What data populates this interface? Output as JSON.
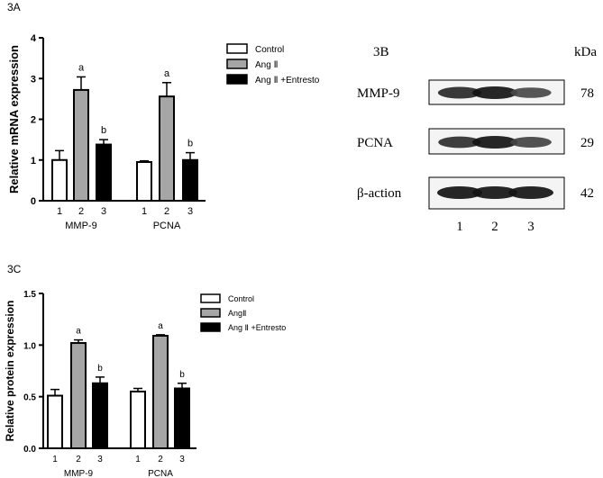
{
  "panels": {
    "a_label": "3A",
    "b_label": "3B",
    "c_label": "3C"
  },
  "chart_data": [
    {
      "type": "bar",
      "panel": "3A",
      "groups": [
        "MMP-9",
        "PCNA"
      ],
      "tick_labels": [
        "1",
        "2",
        "3"
      ],
      "ylabel": "Relative mRNA expression",
      "ylim": [
        0,
        4
      ],
      "yticks": [
        "0",
        "1",
        "2",
        "3",
        "4"
      ],
      "legend_position": "top-right",
      "series": [
        {
          "name": "Control",
          "fill": "#ffffff",
          "values": [
            1.0,
            0.95
          ],
          "errors": [
            0.23,
            0.03
          ],
          "letters": [
            "",
            ""
          ]
        },
        {
          "name": "Ang Ⅱ",
          "fill": "#a6a6a6",
          "values": [
            2.72,
            2.56
          ],
          "errors": [
            0.32,
            0.34
          ],
          "letters": [
            "a",
            "a"
          ]
        },
        {
          "name": "Ang Ⅱ +Entresto",
          "fill": "#000000",
          "values": [
            1.38,
            1.0
          ],
          "errors": [
            0.12,
            0.18
          ],
          "letters": [
            "b",
            "b"
          ]
        }
      ]
    },
    {
      "type": "bar",
      "panel": "3C",
      "groups": [
        "MMP-9",
        "PCNA"
      ],
      "tick_labels": [
        "1",
        "2",
        "3"
      ],
      "ylabel": "Relative protein expression",
      "ylim": [
        0,
        1.5
      ],
      "yticks": [
        "0.0",
        "0.5",
        "1.0",
        "1.5"
      ],
      "legend_position": "top-right",
      "series": [
        {
          "name": "Control",
          "fill": "#ffffff",
          "values": [
            0.51,
            0.55
          ],
          "errors": [
            0.06,
            0.03
          ],
          "letters": [
            "",
            ""
          ]
        },
        {
          "name": "AngⅡ",
          "fill": "#a6a6a6",
          "values": [
            1.02,
            1.09
          ],
          "errors": [
            0.03,
            0.01
          ],
          "letters": [
            "a",
            "a"
          ]
        },
        {
          "name": "Ang Ⅱ +Entresto",
          "fill": "#000000",
          "values": [
            0.63,
            0.58
          ],
          "errors": [
            0.06,
            0.05
          ],
          "letters": [
            "b",
            "b"
          ]
        }
      ]
    }
  ],
  "blot": {
    "unit_label": "kDa",
    "lane_labels": [
      "1",
      "2",
      "3"
    ],
    "rows": [
      {
        "label": "MMP-9",
        "kda": "78",
        "intensity": [
          0.85,
          1.0,
          0.6
        ]
      },
      {
        "label": "PCNA",
        "kda": "29",
        "intensity": [
          0.8,
          1.0,
          0.65
        ]
      },
      {
        "label": "β-action",
        "kda": "42",
        "intensity": [
          1.0,
          1.0,
          1.0
        ]
      }
    ]
  }
}
